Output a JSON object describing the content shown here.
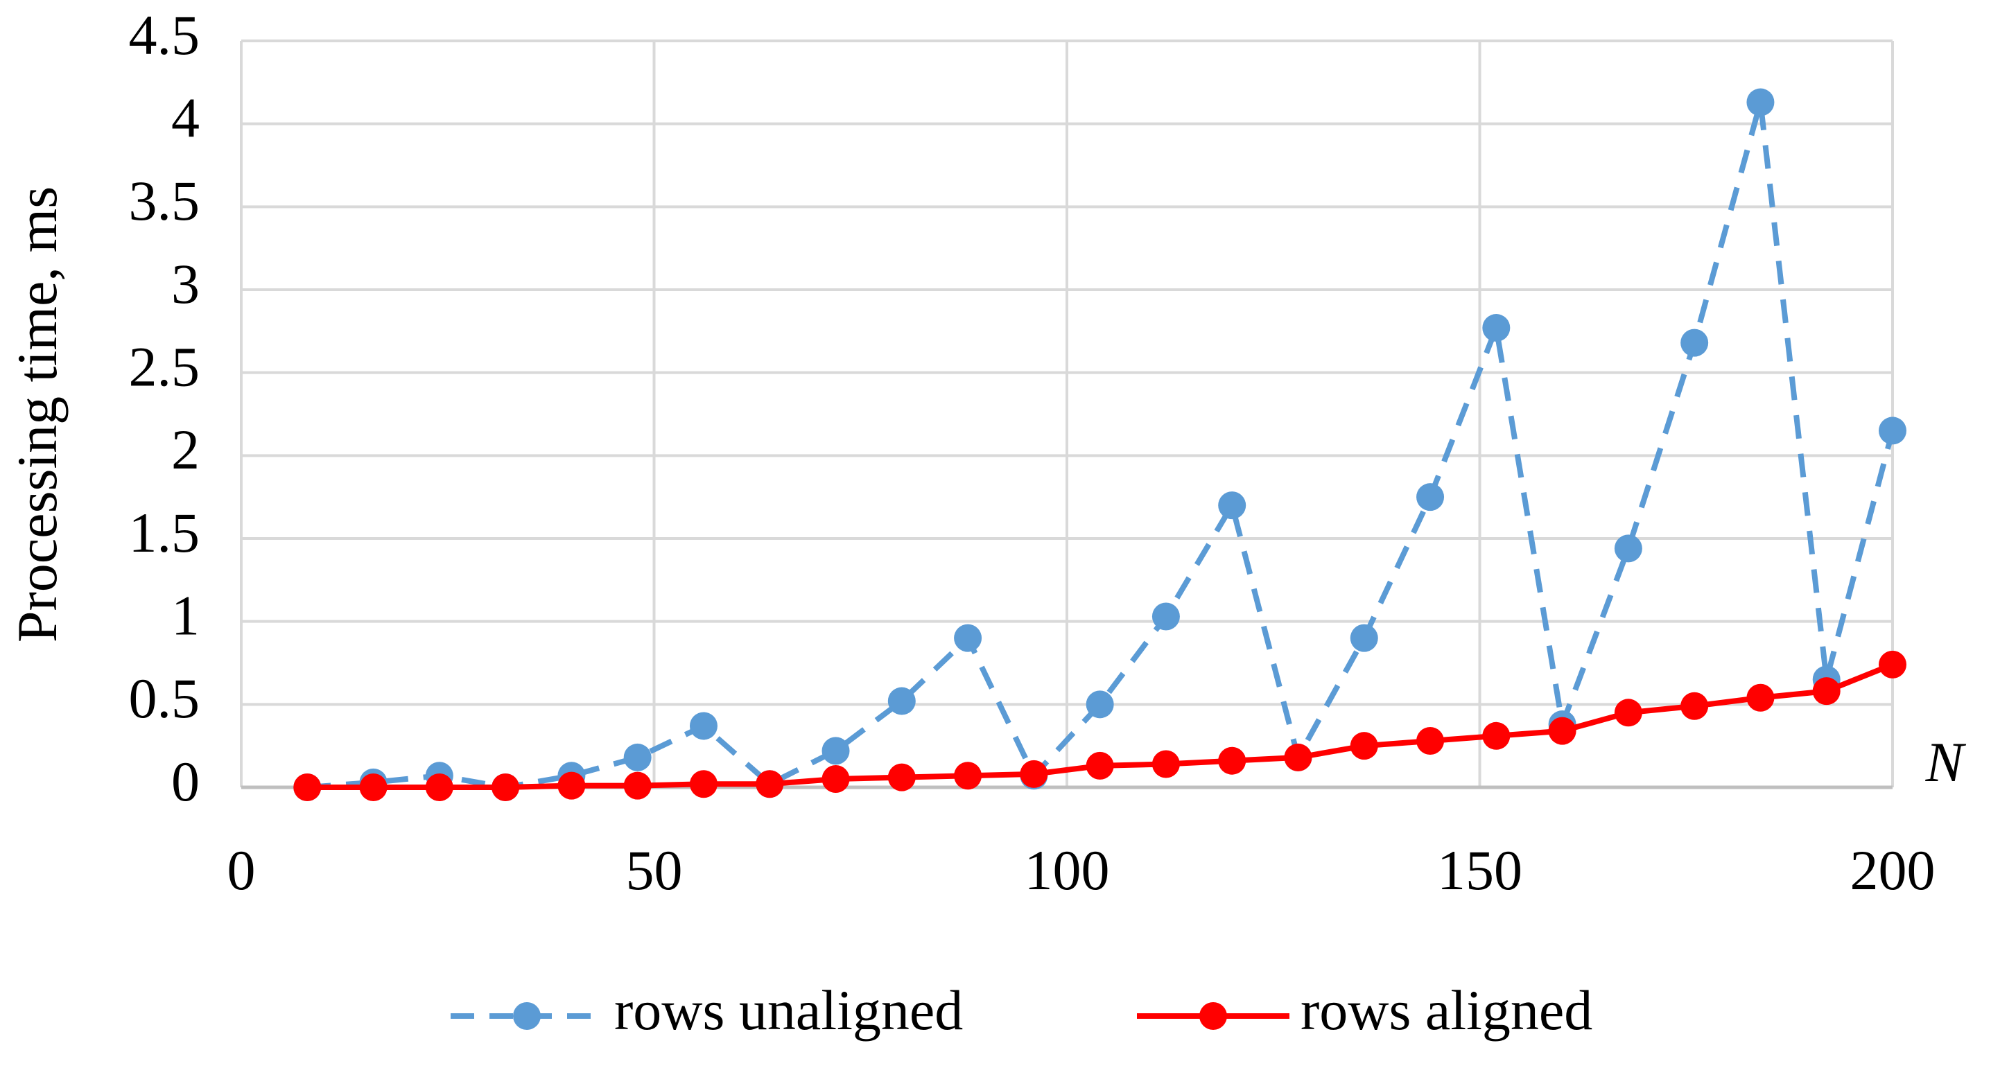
{
  "chart_data": {
    "type": "line",
    "y_label": "Processing time, ms",
    "x_label": "N",
    "x": [
      8,
      16,
      24,
      32,
      40,
      48,
      56,
      64,
      72,
      80,
      88,
      96,
      104,
      112,
      120,
      128,
      136,
      144,
      152,
      160,
      168,
      176,
      184,
      192,
      200
    ],
    "series": [
      {
        "name": "rows unaligned",
        "color": "#5b9bd5",
        "dashed": true,
        "values": [
          0.0,
          0.03,
          0.07,
          0.0,
          0.07,
          0.18,
          0.37,
          0.02,
          0.22,
          0.52,
          0.9,
          0.07,
          0.5,
          1.03,
          1.7,
          0.18,
          0.9,
          1.75,
          2.77,
          0.38,
          1.44,
          2.68,
          4.13,
          0.65,
          2.15
        ]
      },
      {
        "name": "rows aligned",
        "color": "#ff0000",
        "dashed": false,
        "values": [
          0,
          0,
          0,
          0,
          0.01,
          0.01,
          0.02,
          0.02,
          0.05,
          0.06,
          0.07,
          0.08,
          0.13,
          0.14,
          0.16,
          0.18,
          0.25,
          0.28,
          0.31,
          0.34,
          0.45,
          0.49,
          0.54,
          0.58,
          0.74
        ]
      }
    ],
    "xlim": [
      0,
      200
    ],
    "xticks": [
      0,
      50,
      100,
      150,
      200
    ],
    "ylim": [
      0,
      4.5
    ],
    "yticks": [
      0,
      0.5,
      1,
      1.5,
      2,
      2.5,
      3,
      3.5,
      4,
      4.5
    ],
    "grid": true,
    "legend": "bottom"
  }
}
